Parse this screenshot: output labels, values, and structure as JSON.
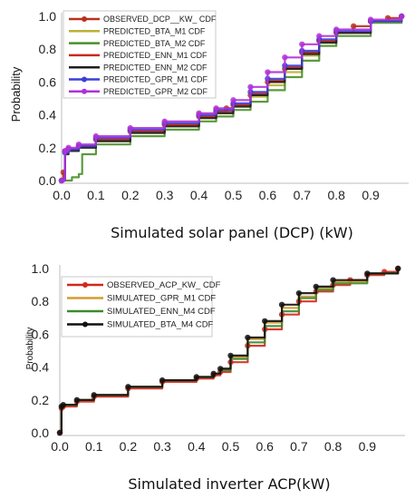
{
  "chart_data": [
    {
      "type": "line",
      "xlabel": "Simulated solar panel (DCP) (kW)",
      "ylabel": "Probability",
      "xlim": [
        0.0,
        1.0
      ],
      "ylim": [
        0.0,
        1.0
      ],
      "xticks": [
        "0.0",
        "0.1",
        "0.2",
        "0.3",
        "0.4",
        "0.5",
        "0.6",
        "0.7",
        "0.8",
        "0.9"
      ],
      "yticks": [
        "0.0",
        "0.2",
        "0.4",
        "0.6",
        "0.8",
        "1.0"
      ],
      "legend_position": "top-left",
      "series": [
        {
          "name": "OBSERVED_DCP__KW_ CDF",
          "color": "#b5321e",
          "marker": true,
          "x": [
            0.0,
            0.005,
            0.01,
            0.02,
            0.05,
            0.1,
            0.2,
            0.3,
            0.4,
            0.45,
            0.48,
            0.5,
            0.55,
            0.6,
            0.65,
            0.7,
            0.75,
            0.8,
            0.85,
            0.9,
            0.95,
            0.99
          ],
          "y": [
            0.0,
            0.05,
            0.18,
            0.19,
            0.21,
            0.25,
            0.3,
            0.34,
            0.39,
            0.42,
            0.44,
            0.46,
            0.52,
            0.6,
            0.68,
            0.78,
            0.85,
            0.9,
            0.94,
            0.97,
            0.99,
            1.0
          ]
        },
        {
          "name": "PREDICTED_BTA_M1 CDF",
          "color": "#b8b234",
          "marker": false,
          "x": [
            0.0,
            0.01,
            0.02,
            0.05,
            0.1,
            0.2,
            0.3,
            0.4,
            0.45,
            0.5,
            0.55,
            0.6,
            0.65,
            0.7,
            0.75,
            0.8,
            0.9,
            0.99
          ],
          "y": [
            0.0,
            0.16,
            0.18,
            0.2,
            0.24,
            0.29,
            0.33,
            0.38,
            0.41,
            0.45,
            0.51,
            0.58,
            0.66,
            0.76,
            0.84,
            0.9,
            0.97,
            1.0
          ]
        },
        {
          "name": "PREDICTED_BTA_M2 CDF",
          "color": "#4a8f2a",
          "marker": false,
          "x": [
            0.0,
            0.02,
            0.03,
            0.05,
            0.06,
            0.1,
            0.2,
            0.3,
            0.4,
            0.45,
            0.5,
            0.55,
            0.6,
            0.65,
            0.7,
            0.75,
            0.8,
            0.9,
            0.99
          ],
          "y": [
            0.0,
            0.0,
            0.02,
            0.04,
            0.16,
            0.22,
            0.27,
            0.31,
            0.36,
            0.39,
            0.43,
            0.48,
            0.55,
            0.63,
            0.73,
            0.82,
            0.88,
            0.96,
            1.0
          ]
        },
        {
          "name": "PREDICTED_ENN_M1 CDF",
          "color": "#c62b1c",
          "marker": false,
          "x": [
            0.0,
            0.01,
            0.02,
            0.05,
            0.1,
            0.2,
            0.3,
            0.4,
            0.45,
            0.5,
            0.55,
            0.6,
            0.65,
            0.7,
            0.75,
            0.8,
            0.9,
            0.99
          ],
          "y": [
            0.0,
            0.17,
            0.19,
            0.21,
            0.25,
            0.3,
            0.34,
            0.39,
            0.42,
            0.46,
            0.53,
            0.61,
            0.69,
            0.78,
            0.85,
            0.9,
            0.97,
            1.0
          ]
        },
        {
          "name": "PREDICTED_ENN_M2 CDF",
          "color": "#1e1e1e",
          "marker": false,
          "x": [
            0.0,
            0.01,
            0.02,
            0.05,
            0.1,
            0.2,
            0.3,
            0.4,
            0.45,
            0.5,
            0.55,
            0.6,
            0.65,
            0.7,
            0.75,
            0.8,
            0.9,
            0.99
          ],
          "y": [
            0.0,
            0.16,
            0.18,
            0.2,
            0.24,
            0.29,
            0.33,
            0.38,
            0.41,
            0.45,
            0.52,
            0.6,
            0.68,
            0.77,
            0.84,
            0.9,
            0.97,
            1.0
          ]
        },
        {
          "name": "PREDICTED_GPR_M1 CDF",
          "color": "#3b3fd8",
          "marker": true,
          "x": [
            0.0,
            0.01,
            0.02,
            0.05,
            0.1,
            0.2,
            0.3,
            0.4,
            0.45,
            0.5,
            0.55,
            0.6,
            0.65,
            0.7,
            0.75,
            0.8,
            0.9,
            0.99
          ],
          "y": [
            0.0,
            0.17,
            0.19,
            0.21,
            0.26,
            0.31,
            0.35,
            0.4,
            0.43,
            0.47,
            0.54,
            0.62,
            0.7,
            0.79,
            0.86,
            0.91,
            0.97,
            1.0
          ]
        },
        {
          "name": "PREDICTED_GPR_M2 CDF",
          "color": "#b030d8",
          "marker": true,
          "x": [
            0.0,
            0.01,
            0.02,
            0.05,
            0.1,
            0.2,
            0.3,
            0.4,
            0.45,
            0.5,
            0.55,
            0.6,
            0.65,
            0.7,
            0.75,
            0.8,
            0.9,
            0.99
          ],
          "y": [
            0.0,
            0.18,
            0.2,
            0.22,
            0.27,
            0.32,
            0.36,
            0.41,
            0.44,
            0.49,
            0.57,
            0.66,
            0.75,
            0.83,
            0.88,
            0.92,
            0.98,
            1.0
          ]
        }
      ]
    },
    {
      "type": "line",
      "xlabel": "Simulated inverter ACP(kW)",
      "ylabel": "Probability",
      "xlim": [
        0.0,
        1.0
      ],
      "ylim": [
        0.0,
        1.0
      ],
      "xticks": [
        "0.0",
        "0.1",
        "0.2",
        "0.3",
        "0.4",
        "0.5",
        "0.6",
        "0.7",
        "0.8",
        "0.9"
      ],
      "yticks": [
        "0.0",
        "0.2",
        "0.4",
        "0.6",
        "0.8",
        "1.0"
      ],
      "legend_position": "top-left",
      "series": [
        {
          "name": "OBSERVED_ACP_KW_ CDF",
          "color": "#d0281c",
          "marker": true,
          "x": [
            0.0,
            0.005,
            0.01,
            0.05,
            0.1,
            0.2,
            0.3,
            0.4,
            0.45,
            0.47,
            0.5,
            0.55,
            0.6,
            0.65,
            0.7,
            0.75,
            0.8,
            0.85,
            0.9,
            0.95,
            0.99
          ],
          "y": [
            0.0,
            0.15,
            0.16,
            0.19,
            0.22,
            0.27,
            0.31,
            0.33,
            0.35,
            0.37,
            0.43,
            0.53,
            0.63,
            0.72,
            0.8,
            0.86,
            0.9,
            0.93,
            0.96,
            0.98,
            1.0
          ]
        },
        {
          "name": "SIMULATED_GPR_M1 CDF",
          "color": "#d49a2e",
          "marker": false,
          "x": [
            0.0,
            0.005,
            0.01,
            0.05,
            0.1,
            0.2,
            0.3,
            0.4,
            0.45,
            0.47,
            0.5,
            0.55,
            0.6,
            0.65,
            0.7,
            0.75,
            0.8,
            0.9,
            0.99
          ],
          "y": [
            0.0,
            0.16,
            0.17,
            0.2,
            0.23,
            0.28,
            0.32,
            0.34,
            0.36,
            0.39,
            0.46,
            0.57,
            0.67,
            0.76,
            0.83,
            0.88,
            0.92,
            0.97,
            1.0
          ]
        },
        {
          "name": "SIMULATED_ENN_M4 CDF",
          "color": "#3c8a2c",
          "marker": false,
          "x": [
            0.0,
            0.005,
            0.01,
            0.05,
            0.1,
            0.2,
            0.3,
            0.4,
            0.45,
            0.47,
            0.5,
            0.55,
            0.6,
            0.65,
            0.7,
            0.75,
            0.8,
            0.9,
            0.99
          ],
          "y": [
            0.0,
            0.16,
            0.17,
            0.2,
            0.23,
            0.28,
            0.32,
            0.34,
            0.36,
            0.38,
            0.45,
            0.55,
            0.65,
            0.74,
            0.82,
            0.87,
            0.91,
            0.97,
            1.0
          ]
        },
        {
          "name": "SIMULATED_BTA_M4 CDF",
          "color": "#111111",
          "marker": true,
          "x": [
            0.0,
            0.005,
            0.01,
            0.05,
            0.1,
            0.2,
            0.3,
            0.4,
            0.45,
            0.47,
            0.5,
            0.55,
            0.6,
            0.65,
            0.7,
            0.75,
            0.8,
            0.9,
            0.99
          ],
          "y": [
            0.0,
            0.16,
            0.17,
            0.2,
            0.23,
            0.28,
            0.32,
            0.34,
            0.36,
            0.39,
            0.47,
            0.58,
            0.68,
            0.78,
            0.85,
            0.89,
            0.93,
            0.97,
            1.0
          ]
        }
      ]
    }
  ]
}
